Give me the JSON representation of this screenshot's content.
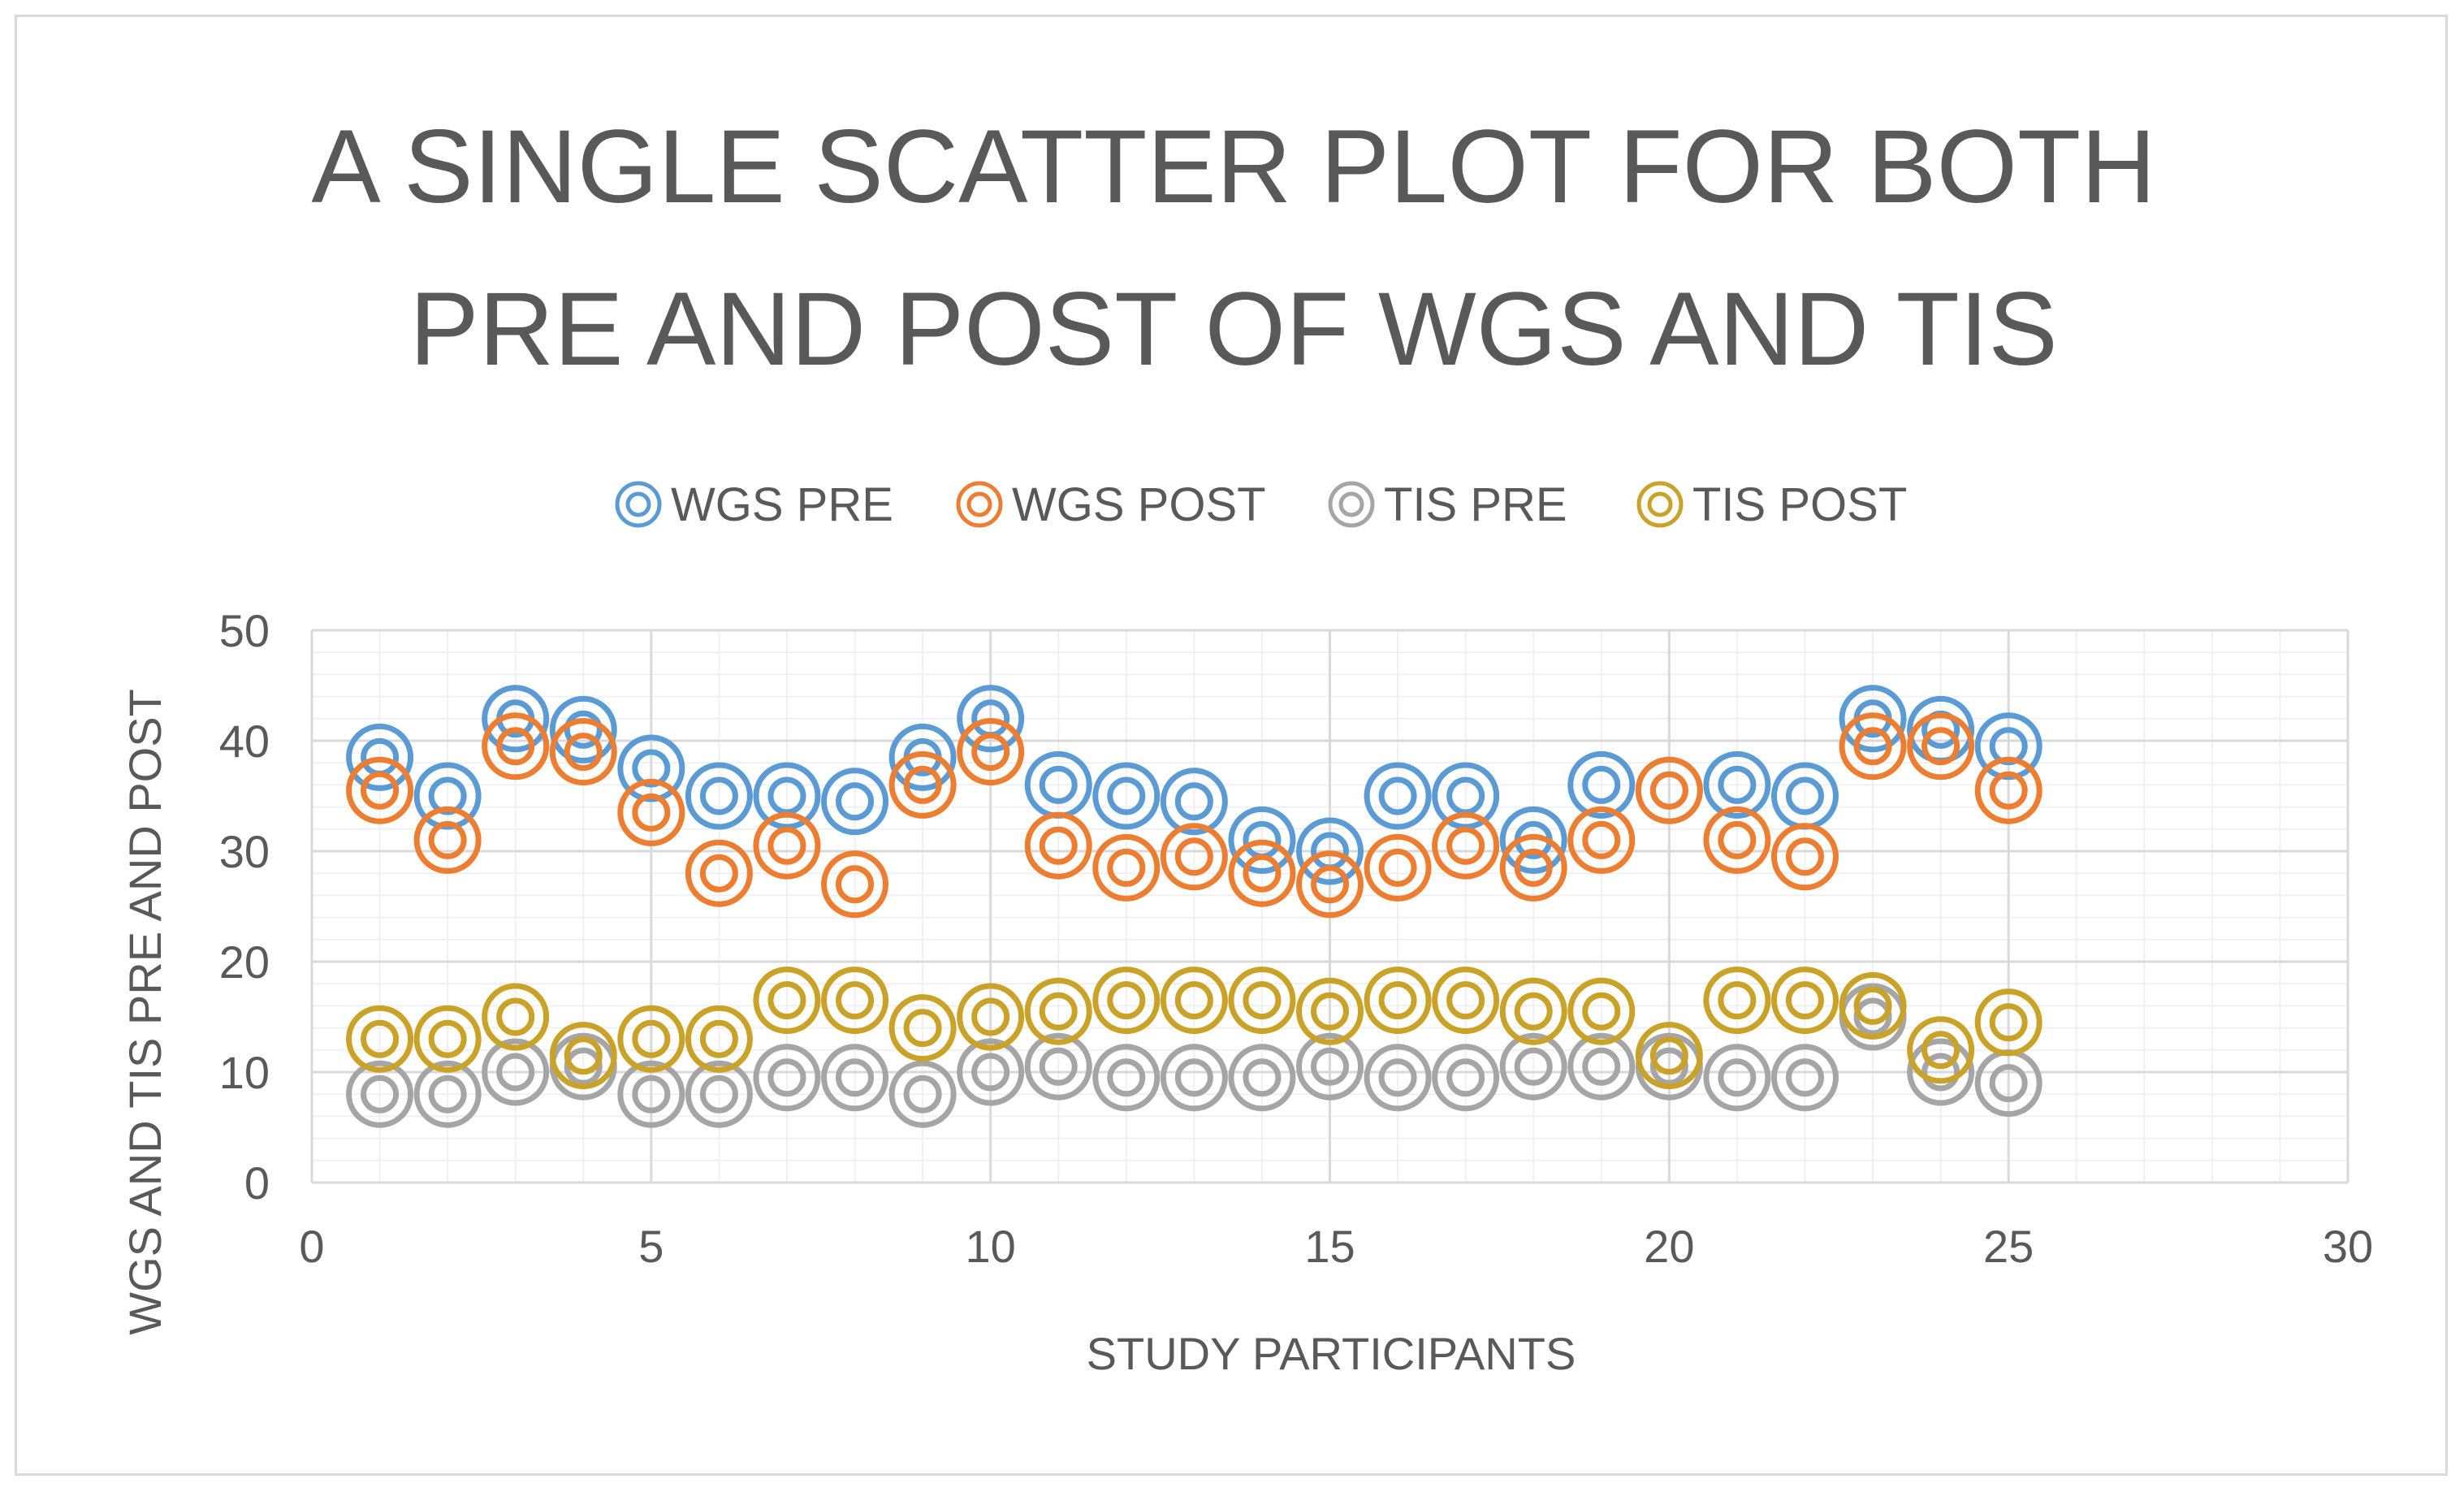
{
  "chart_data": {
    "type": "scatter",
    "title_lines": [
      "A SINGLE SCATTER PLOT FOR BOTH",
      "PRE AND POST OF WGS AND TIS"
    ],
    "xlabel": "STUDY PARTICIPANTS",
    "ylabel": "WGS AND TIS PRE AND POST",
    "xlim": [
      0,
      30
    ],
    "ylim": [
      0,
      50
    ],
    "x_ticks": [
      0,
      5,
      10,
      15,
      20,
      25,
      30
    ],
    "y_ticks": [
      0,
      10,
      20,
      30,
      40,
      50
    ],
    "grid": true,
    "legend_position": "top",
    "x": [
      1,
      2,
      3,
      4,
      5,
      6,
      7,
      8,
      9,
      10,
      11,
      12,
      13,
      14,
      15,
      16,
      17,
      18,
      19,
      20,
      21,
      22,
      23,
      24,
      25
    ],
    "series": [
      {
        "name": "WGS PRE",
        "color": "#5b9bd5",
        "values": [
          38.5,
          35,
          42,
          41,
          37.5,
          35,
          35,
          34.5,
          38.5,
          42,
          36,
          35,
          34.5,
          31,
          30,
          35,
          35,
          31,
          36,
          35.5,
          36,
          35,
          42,
          41,
          39.5
        ]
      },
      {
        "name": "WGS POST",
        "color": "#ed7d31",
        "values": [
          35.5,
          31,
          39.5,
          39,
          33.5,
          28,
          30.5,
          27,
          36,
          39,
          30.5,
          28.5,
          29.5,
          28,
          27,
          28.5,
          30.5,
          28.5,
          31,
          35.5,
          31,
          29.5,
          39.5,
          39.5,
          35.5
        ]
      },
      {
        "name": "TIS PRE",
        "color": "#a5a5a5",
        "values": [
          8,
          8,
          10,
          10.5,
          8,
          8,
          9.5,
          9.5,
          8,
          10,
          10.5,
          9.5,
          9.5,
          9.5,
          10.5,
          9.5,
          9.5,
          10.5,
          10.5,
          10.5,
          9.5,
          9.5,
          15,
          10,
          9
        ]
      },
      {
        "name": "TIS POST",
        "color": "#c9a227",
        "values": [
          13,
          13,
          15,
          11.5,
          13,
          13,
          16.5,
          16.5,
          14,
          15,
          15.5,
          16.5,
          16.5,
          16.5,
          15.5,
          16.5,
          16.5,
          15.5,
          15.5,
          11.5,
          16.5,
          16.5,
          16,
          12,
          14.5
        ]
      }
    ]
  }
}
